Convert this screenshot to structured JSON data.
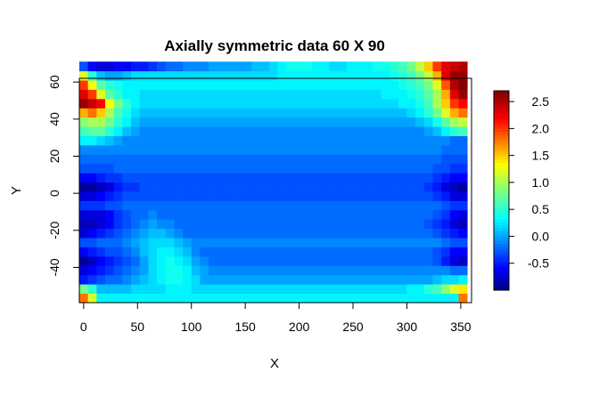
{
  "chart_data": {
    "type": "heatmap",
    "title": "Axially symmetric data 60 X 90",
    "xlabel": "X",
    "ylabel": "Y",
    "x_ticks": [
      0,
      50,
      100,
      150,
      200,
      250,
      300,
      350
    ],
    "y_ticks": [
      -40,
      -20,
      0,
      20,
      40,
      60
    ],
    "xlim": [
      -4,
      360
    ],
    "ylim": [
      -59,
      62
    ],
    "grid": {
      "x_start": -4,
      "x_step": 8,
      "y_start": -59,
      "y_step": 5
    },
    "z_min": -1.0,
    "z_max": 2.7,
    "colorbar": {
      "ticks": [
        -0.5,
        0.0,
        0.5,
        1.0,
        1.5,
        2.0,
        2.5
      ],
      "tick_labels": [
        "-0.5",
        "0.0",
        "0.5",
        "1.0",
        "1.5",
        "2.0",
        "2.5"
      ],
      "palette": "jet (dark blue → blue → cyan → yellow → red → dark red)"
    },
    "z": [
      [
        1.8,
        1.2,
        0.3,
        0.3,
        0.3,
        0.3,
        0.3,
        0.3,
        0.3,
        0.3,
        0.3,
        0.3,
        0.3,
        0.3,
        0.3,
        0.3,
        0.3,
        0.3,
        0.3,
        0.3,
        0.3,
        0.3,
        0.3,
        0.3,
        0.3,
        0.3,
        0.3,
        0.3,
        0.3,
        0.3,
        0.3,
        0.3,
        0.3,
        0.3,
        0.3,
        0.3,
        0.3,
        0.3,
        0.3,
        0.3,
        0.3,
        0.3,
        0.3,
        0.3,
        1.8
      ],
      [
        0.8,
        0.5,
        0.1,
        0.1,
        0.1,
        0.1,
        0.2,
        0.2,
        0.2,
        0.2,
        0.3,
        0.3,
        0.3,
        0.2,
        0.2,
        0.2,
        0.2,
        0.2,
        0.2,
        0.2,
        0.2,
        0.2,
        0.2,
        0.2,
        0.2,
        0.2,
        0.2,
        0.2,
        0.2,
        0.2,
        0.2,
        0.2,
        0.2,
        0.2,
        0.2,
        0.2,
        0.2,
        0.2,
        0.3,
        0.3,
        0.5,
        0.6,
        0.9,
        1.2,
        1.4
      ],
      [
        -0.5,
        -0.4,
        -0.3,
        -0.2,
        -0.2,
        -0.1,
        0.0,
        0.1,
        0.2,
        0.3,
        0.4,
        0.4,
        0.3,
        0.2,
        0.0,
        0.0,
        0.0,
        0.0,
        0.0,
        0.0,
        0.0,
        0.0,
        0.0,
        0.0,
        0.0,
        0.0,
        0.0,
        0.0,
        0.0,
        0.0,
        0.0,
        0.0,
        0.0,
        0.0,
        0.0,
        0.0,
        0.0,
        0.0,
        0.0,
        0.0,
        0.0,
        0.1,
        0.2,
        0.2,
        0.3
      ],
      [
        -0.7,
        -0.6,
        -0.5,
        -0.4,
        -0.3,
        -0.2,
        -0.1,
        0.0,
        0.2,
        0.3,
        0.4,
        0.4,
        0.3,
        0.1,
        0.0,
        -0.1,
        -0.1,
        -0.1,
        -0.1,
        -0.1,
        -0.1,
        -0.1,
        -0.1,
        -0.1,
        -0.1,
        -0.1,
        -0.1,
        -0.1,
        -0.1,
        -0.1,
        -0.1,
        -0.1,
        -0.1,
        -0.1,
        -0.1,
        -0.1,
        -0.1,
        -0.1,
        -0.1,
        -0.1,
        -0.1,
        -0.1,
        -0.1,
        -0.2,
        -0.2
      ],
      [
        -0.9,
        -0.8,
        -0.6,
        -0.5,
        -0.4,
        -0.3,
        -0.2,
        0.0,
        0.2,
        0.3,
        0.4,
        0.3,
        0.2,
        0.0,
        -0.1,
        -0.2,
        -0.2,
        -0.2,
        -0.2,
        -0.2,
        -0.2,
        -0.2,
        -0.2,
        -0.2,
        -0.2,
        -0.2,
        -0.2,
        -0.2,
        -0.2,
        -0.2,
        -0.2,
        -0.2,
        -0.2,
        -0.2,
        -0.2,
        -0.2,
        -0.2,
        -0.2,
        -0.2,
        -0.2,
        -0.2,
        -0.3,
        -0.5,
        -0.7,
        -0.8
      ],
      [
        -0.6,
        -0.5,
        -0.4,
        -0.3,
        -0.3,
        -0.2,
        -0.1,
        0.1,
        0.2,
        0.3,
        0.3,
        0.2,
        0.1,
        -0.1,
        -0.2,
        -0.2,
        -0.2,
        -0.2,
        -0.2,
        -0.2,
        -0.2,
        -0.2,
        -0.2,
        -0.2,
        -0.2,
        -0.2,
        -0.2,
        -0.2,
        -0.2,
        -0.2,
        -0.2,
        -0.2,
        -0.2,
        -0.2,
        -0.2,
        -0.2,
        -0.2,
        -0.2,
        -0.2,
        -0.2,
        -0.2,
        -0.3,
        -0.4,
        -0.6,
        -0.6
      ],
      [
        -0.3,
        -0.3,
        -0.2,
        -0.2,
        -0.2,
        -0.1,
        0.0,
        0.1,
        0.2,
        0.2,
        0.2,
        0.1,
        0.0,
        -0.1,
        -0.1,
        -0.1,
        -0.1,
        -0.1,
        -0.1,
        -0.1,
        -0.1,
        -0.1,
        -0.1,
        -0.1,
        -0.1,
        -0.1,
        -0.1,
        -0.1,
        -0.1,
        -0.1,
        -0.1,
        -0.1,
        -0.1,
        -0.1,
        -0.1,
        -0.1,
        -0.1,
        -0.1,
        -0.1,
        -0.1,
        -0.1,
        -0.1,
        -0.2,
        -0.3,
        -0.3
      ],
      [
        -0.7,
        -0.6,
        -0.5,
        -0.4,
        -0.3,
        -0.2,
        -0.1,
        0.0,
        0.1,
        0.1,
        0.0,
        -0.1,
        -0.2,
        -0.2,
        -0.2,
        -0.2,
        -0.2,
        -0.2,
        -0.2,
        -0.2,
        -0.2,
        -0.2,
        -0.2,
        -0.2,
        -0.2,
        -0.2,
        -0.2,
        -0.2,
        -0.2,
        -0.2,
        -0.2,
        -0.2,
        -0.2,
        -0.2,
        -0.2,
        -0.2,
        -0.2,
        -0.2,
        -0.2,
        -0.2,
        -0.2,
        -0.3,
        -0.4,
        -0.5,
        -0.6
      ],
      [
        -0.8,
        -0.8,
        -0.7,
        -0.6,
        -0.4,
        -0.3,
        -0.2,
        -0.1,
        0.0,
        -0.1,
        -0.1,
        -0.2,
        -0.2,
        -0.2,
        -0.2,
        -0.2,
        -0.2,
        -0.2,
        -0.2,
        -0.2,
        -0.2,
        -0.2,
        -0.2,
        -0.2,
        -0.2,
        -0.2,
        -0.2,
        -0.2,
        -0.2,
        -0.2,
        -0.2,
        -0.2,
        -0.2,
        -0.2,
        -0.2,
        -0.2,
        -0.2,
        -0.2,
        -0.2,
        -0.2,
        -0.3,
        -0.4,
        -0.5,
        -0.7,
        -0.8
      ],
      [
        -0.7,
        -0.7,
        -0.7,
        -0.6,
        -0.4,
        -0.3,
        -0.2,
        -0.2,
        -0.1,
        -0.2,
        -0.2,
        -0.2,
        -0.2,
        -0.2,
        -0.2,
        -0.2,
        -0.2,
        -0.2,
        -0.2,
        -0.2,
        -0.2,
        -0.2,
        -0.2,
        -0.2,
        -0.2,
        -0.2,
        -0.2,
        -0.2,
        -0.2,
        -0.2,
        -0.2,
        -0.2,
        -0.2,
        -0.2,
        -0.2,
        -0.2,
        -0.2,
        -0.2,
        -0.2,
        -0.2,
        -0.2,
        -0.3,
        -0.4,
        -0.6,
        -0.7
      ],
      [
        -0.4,
        -0.4,
        -0.4,
        -0.3,
        -0.3,
        -0.2,
        -0.2,
        -0.2,
        -0.2,
        -0.2,
        -0.2,
        -0.2,
        -0.2,
        -0.2,
        -0.2,
        -0.2,
        -0.2,
        -0.2,
        -0.2,
        -0.2,
        -0.2,
        -0.2,
        -0.2,
        -0.2,
        -0.2,
        -0.2,
        -0.2,
        -0.2,
        -0.2,
        -0.2,
        -0.2,
        -0.2,
        -0.2,
        -0.2,
        -0.2,
        -0.2,
        -0.2,
        -0.2,
        -0.2,
        -0.2,
        -0.2,
        -0.2,
        -0.3,
        -0.4,
        -0.4
      ],
      [
        -0.7,
        -0.7,
        -0.6,
        -0.5,
        -0.4,
        -0.3,
        -0.3,
        -0.3,
        -0.3,
        -0.3,
        -0.3,
        -0.3,
        -0.3,
        -0.3,
        -0.3,
        -0.3,
        -0.3,
        -0.3,
        -0.3,
        -0.3,
        -0.3,
        -0.3,
        -0.3,
        -0.3,
        -0.3,
        -0.3,
        -0.3,
        -0.3,
        -0.3,
        -0.3,
        -0.3,
        -0.3,
        -0.3,
        -0.3,
        -0.3,
        -0.3,
        -0.3,
        -0.3,
        -0.3,
        -0.3,
        -0.3,
        -0.4,
        -0.5,
        -0.7,
        -0.7
      ],
      [
        -0.9,
        -0.9,
        -0.8,
        -0.7,
        -0.5,
        -0.4,
        -0.4,
        -0.3,
        -0.3,
        -0.3,
        -0.3,
        -0.3,
        -0.3,
        -0.3,
        -0.3,
        -0.3,
        -0.3,
        -0.3,
        -0.3,
        -0.3,
        -0.3,
        -0.3,
        -0.3,
        -0.3,
        -0.3,
        -0.3,
        -0.3,
        -0.3,
        -0.3,
        -0.3,
        -0.3,
        -0.3,
        -0.3,
        -0.3,
        -0.3,
        -0.3,
        -0.3,
        -0.3,
        -0.3,
        -0.3,
        -0.4,
        -0.5,
        -0.7,
        -0.8,
        -0.9
      ],
      [
        -0.6,
        -0.6,
        -0.5,
        -0.4,
        -0.4,
        -0.3,
        -0.3,
        -0.3,
        -0.3,
        -0.3,
        -0.3,
        -0.3,
        -0.3,
        -0.3,
        -0.3,
        -0.3,
        -0.3,
        -0.3,
        -0.3,
        -0.3,
        -0.3,
        -0.3,
        -0.3,
        -0.3,
        -0.3,
        -0.3,
        -0.3,
        -0.3,
        -0.3,
        -0.3,
        -0.3,
        -0.3,
        -0.3,
        -0.3,
        -0.3,
        -0.3,
        -0.3,
        -0.3,
        -0.3,
        -0.3,
        -0.3,
        -0.4,
        -0.5,
        -0.6,
        -0.6
      ],
      [
        -0.3,
        -0.3,
        -0.3,
        -0.3,
        -0.2,
        -0.2,
        -0.2,
        -0.2,
        -0.2,
        -0.2,
        -0.2,
        -0.2,
        -0.2,
        -0.2,
        -0.2,
        -0.2,
        -0.2,
        -0.2,
        -0.2,
        -0.2,
        -0.2,
        -0.2,
        -0.2,
        -0.2,
        -0.2,
        -0.2,
        -0.2,
        -0.2,
        -0.2,
        -0.2,
        -0.2,
        -0.2,
        -0.2,
        -0.2,
        -0.2,
        -0.2,
        -0.2,
        -0.2,
        -0.2,
        -0.2,
        -0.2,
        -0.3,
        -0.3,
        -0.4,
        -0.4
      ],
      [
        -0.2,
        -0.2,
        -0.2,
        -0.2,
        -0.2,
        -0.2,
        -0.2,
        -0.2,
        -0.2,
        -0.2,
        -0.2,
        -0.2,
        -0.2,
        -0.2,
        -0.2,
        -0.2,
        -0.2,
        -0.2,
        -0.2,
        -0.2,
        -0.2,
        -0.2,
        -0.2,
        -0.2,
        -0.2,
        -0.2,
        -0.2,
        -0.2,
        -0.2,
        -0.2,
        -0.2,
        -0.2,
        -0.2,
        -0.2,
        -0.2,
        -0.2,
        -0.2,
        -0.2,
        -0.2,
        -0.2,
        -0.2,
        -0.2,
        -0.3,
        -0.3,
        -0.3
      ],
      [
        -0.1,
        -0.1,
        -0.1,
        -0.1,
        -0.1,
        -0.1,
        -0.1,
        -0.1,
        -0.1,
        -0.1,
        -0.1,
        -0.1,
        -0.1,
        -0.1,
        -0.1,
        -0.1,
        -0.1,
        -0.1,
        -0.1,
        -0.1,
        -0.1,
        -0.1,
        -0.1,
        -0.1,
        -0.1,
        -0.1,
        -0.1,
        -0.1,
        -0.1,
        -0.1,
        -0.1,
        -0.1,
        -0.1,
        -0.1,
        -0.1,
        -0.1,
        -0.1,
        -0.1,
        -0.1,
        -0.1,
        -0.1,
        -0.1,
        -0.2,
        -0.2,
        -0.2
      ],
      [
        0.3,
        0.3,
        0.2,
        0.1,
        0.0,
        -0.1,
        -0.1,
        -0.1,
        -0.1,
        -0.1,
        -0.1,
        -0.1,
        -0.1,
        -0.1,
        -0.1,
        -0.1,
        -0.1,
        -0.1,
        -0.1,
        -0.1,
        -0.1,
        -0.1,
        -0.1,
        -0.1,
        -0.1,
        -0.1,
        -0.1,
        -0.1,
        -0.1,
        -0.1,
        -0.1,
        -0.1,
        -0.1,
        -0.1,
        -0.1,
        -0.1,
        -0.1,
        -0.1,
        -0.1,
        -0.1,
        -0.1,
        -0.1,
        -0.1,
        -0.2,
        -0.2
      ],
      [
        0.6,
        0.7,
        0.7,
        0.5,
        0.3,
        0.1,
        0.0,
        -0.1,
        -0.1,
        -0.1,
        -0.1,
        -0.1,
        -0.1,
        -0.1,
        -0.1,
        -0.1,
        -0.1,
        -0.1,
        -0.1,
        -0.1,
        -0.1,
        -0.1,
        -0.1,
        -0.1,
        -0.1,
        -0.1,
        -0.1,
        -0.1,
        -0.1,
        -0.1,
        -0.1,
        -0.1,
        -0.1,
        -0.1,
        -0.1,
        -0.1,
        -0.1,
        -0.1,
        -0.1,
        -0.1,
        0.0,
        0.1,
        0.3,
        0.5,
        0.6
      ],
      [
        0.9,
        1.0,
        1.0,
        0.8,
        0.5,
        0.3,
        0.1,
        0.0,
        0.0,
        0.0,
        0.0,
        0.0,
        0.0,
        0.0,
        0.0,
        0.0,
        0.0,
        0.0,
        0.0,
        0.0,
        0.0,
        0.0,
        0.0,
        0.0,
        0.0,
        0.0,
        0.0,
        0.0,
        0.0,
        0.0,
        0.0,
        0.0,
        0.0,
        0.0,
        0.0,
        0.0,
        0.0,
        0.0,
        0.0,
        0.1,
        0.2,
        0.4,
        0.7,
        1.0,
        1.1
      ],
      [
        1.6,
        1.8,
        1.5,
        1.0,
        0.6,
        0.4,
        0.2,
        0.1,
        0.1,
        0.1,
        0.1,
        0.1,
        0.1,
        0.1,
        0.1,
        0.1,
        0.1,
        0.1,
        0.1,
        0.1,
        0.1,
        0.1,
        0.1,
        0.1,
        0.1,
        0.1,
        0.1,
        0.1,
        0.1,
        0.1,
        0.1,
        0.1,
        0.1,
        0.1,
        0.1,
        0.1,
        0.1,
        0.1,
        0.2,
        0.3,
        0.5,
        0.8,
        1.2,
        1.6,
        1.8
      ],
      [
        2.6,
        2.4,
        2.2,
        1.3,
        0.8,
        0.5,
        0.3,
        0.2,
        0.2,
        0.2,
        0.2,
        0.2,
        0.2,
        0.2,
        0.2,
        0.2,
        0.2,
        0.2,
        0.2,
        0.2,
        0.2,
        0.2,
        0.2,
        0.2,
        0.2,
        0.2,
        0.2,
        0.2,
        0.2,
        0.2,
        0.2,
        0.2,
        0.2,
        0.2,
        0.2,
        0.2,
        0.2,
        0.3,
        0.3,
        0.4,
        0.6,
        1.0,
        1.5,
        2.0,
        2.2
      ],
      [
        2.3,
        2.0,
        1.2,
        0.7,
        0.5,
        0.3,
        0.3,
        0.2,
        0.2,
        0.2,
        0.2,
        0.2,
        0.2,
        0.2,
        0.2,
        0.2,
        0.2,
        0.2,
        0.2,
        0.2,
        0.2,
        0.2,
        0.2,
        0.2,
        0.2,
        0.2,
        0.2,
        0.2,
        0.2,
        0.2,
        0.2,
        0.2,
        0.2,
        0.2,
        0.2,
        0.3,
        0.3,
        0.3,
        0.4,
        0.5,
        0.7,
        1.0,
        1.6,
        2.3,
        2.6
      ],
      [
        2.0,
        1.3,
        0.7,
        0.5,
        0.4,
        0.3,
        0.3,
        0.3,
        0.3,
        0.3,
        0.3,
        0.3,
        0.3,
        0.3,
        0.3,
        0.3,
        0.3,
        0.3,
        0.3,
        0.3,
        0.3,
        0.3,
        0.3,
        0.3,
        0.3,
        0.3,
        0.3,
        0.3,
        0.3,
        0.3,
        0.3,
        0.3,
        0.3,
        0.3,
        0.3,
        0.3,
        0.3,
        0.4,
        0.5,
        0.6,
        0.8,
        1.2,
        1.9,
        2.5,
        2.7
      ],
      [
        1.2,
        0.5,
        0.1,
        0.0,
        0.0,
        0.1,
        0.2,
        0.2,
        0.2,
        0.2,
        0.2,
        0.2,
        0.2,
        0.2,
        0.2,
        0.2,
        0.2,
        0.2,
        0.2,
        0.2,
        0.2,
        0.2,
        0.2,
        0.3,
        0.3,
        0.3,
        0.3,
        0.3,
        0.3,
        0.3,
        0.3,
        0.3,
        0.3,
        0.3,
        0.3,
        0.3,
        0.4,
        0.5,
        0.6,
        0.8,
        1.1,
        1.6,
        2.3,
        2.6,
        2.6
      ],
      [
        -0.3,
        -0.6,
        -0.7,
        -0.7,
        -0.6,
        -0.6,
        -0.5,
        -0.5,
        -0.4,
        -0.3,
        -0.2,
        -0.2,
        -0.1,
        -0.1,
        -0.1,
        0.0,
        0.0,
        0.0,
        0.0,
        0.0,
        0.1,
        0.1,
        0.2,
        0.3,
        0.4,
        0.4,
        0.4,
        0.3,
        0.3,
        0.2,
        0.2,
        0.3,
        0.3,
        0.3,
        0.4,
        0.4,
        0.5,
        0.6,
        0.8,
        1.1,
        1.5,
        2.0,
        2.3,
        2.4,
        2.5
      ]
    ]
  }
}
